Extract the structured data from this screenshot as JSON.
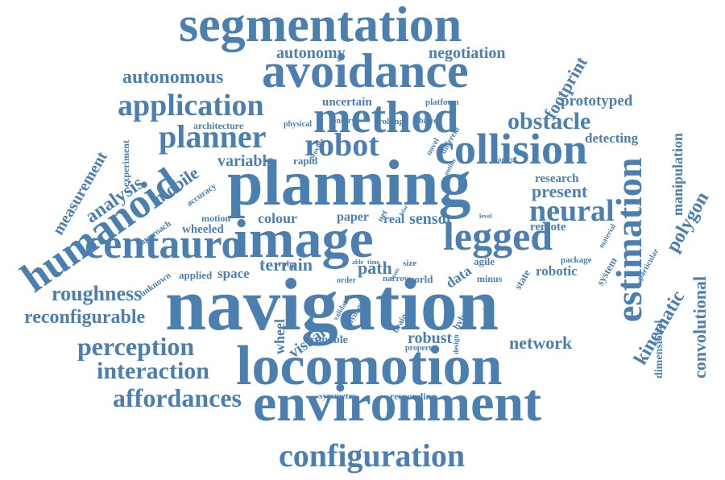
{
  "color": "#4a7fb0",
  "words": {
    "navigation": "navigation",
    "locomotion": "locomotion",
    "environment": "environment",
    "planning": "planning",
    "segmentation": "segmentation",
    "avoidance": "avoidance",
    "method": "method",
    "collision": "collision",
    "robot": "robot",
    "planner": "planner",
    "application": "application",
    "humanoid": "humanoid",
    "centauro": "centauro",
    "image": "image",
    "legged": "legged",
    "neural": "neural",
    "estimation": "estimation",
    "configuration": "configuration",
    "affordances": "affordances",
    "interaction": "interaction",
    "perception": "perception",
    "roughness": "roughness",
    "reconfigurable": "reconfigurable",
    "obstacle": "obstacle",
    "autonomous": "autonomous",
    "autonomy": "autonomy",
    "negotiation": "negotiation",
    "footprint": "footprint",
    "prototyped": "prototyped",
    "uncertain": "uncertain",
    "platform": "platform",
    "architecture": "architecture",
    "physical": "physical",
    "sensory": "sensory",
    "rolling": "rolling",
    "biped": "biped",
    "detecting": "detecting",
    "variable": "variable",
    "rapid": "rapid",
    "research": "research",
    "present": "present",
    "manipulation": "manipulation",
    "polygon": "polygon",
    "convolutional": "convolutional",
    "kinematic": "kinematic",
    "dimensional": "dimensional",
    "measurement": "measurement",
    "experiment": "experiment",
    "analysis": "analysis",
    "mobile": "mobile",
    "accuracy": "accuracy",
    "motion": "motion",
    "colour": "colour",
    "paper": "paper",
    "real": "real",
    "net": "net",
    "sensor": "sensor",
    "remote": "remote",
    "wheeled": "wheeled",
    "approach": "approach",
    "terrain": "terrain",
    "path": "path",
    "rpbp": "rpbp",
    "able": "able",
    "time": "time",
    "size": "size",
    "data": "data",
    "agile": "agile",
    "package": "package",
    "robotic": "robotic",
    "state": "state",
    "system": "system",
    "particular": "particular",
    "material": "material",
    "unknown": "unknown",
    "applied": "applied",
    "space": "space",
    "order": "order",
    "narrow": "narrow",
    "world": "world",
    "minus": "minus",
    "wheel": "wheel",
    "visual": "visual",
    "validate": "validate",
    "dynamic": "dynamic",
    "brain": "brain",
    "hybrid": "hybrid",
    "various": "various",
    "capable": "capable",
    "robust": "robust",
    "property": "property",
    "design": "design",
    "network": "network",
    "symmetry": "symmetry",
    "responding": "responding",
    "control": "control",
    "novel": "novel",
    "different": "different",
    "provide": "provide",
    "level": "level",
    "outlier": "outlier",
    "lidar": "lidar",
    "static": "static"
  }
}
